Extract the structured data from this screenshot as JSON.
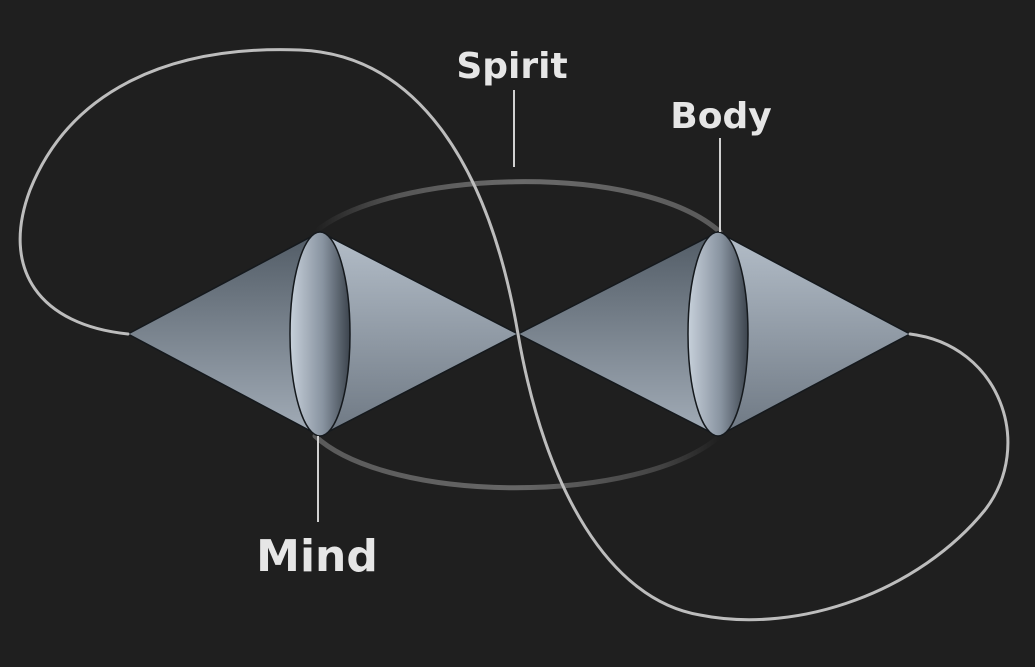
{
  "diagram": {
    "labels": {
      "spirit": "Spirit",
      "body": "Body",
      "mind": "Mind"
    },
    "colors": {
      "background": "#1f1f1f",
      "outer_loop": "#bdbdbd",
      "inner_ring": "#5e5e5e",
      "pointer_line": "#d0d0d0",
      "label": "#e6e6e6",
      "cone_light": "#b9c3ce",
      "cone_dark": "#4f5963",
      "outline": "#15191d"
    }
  }
}
